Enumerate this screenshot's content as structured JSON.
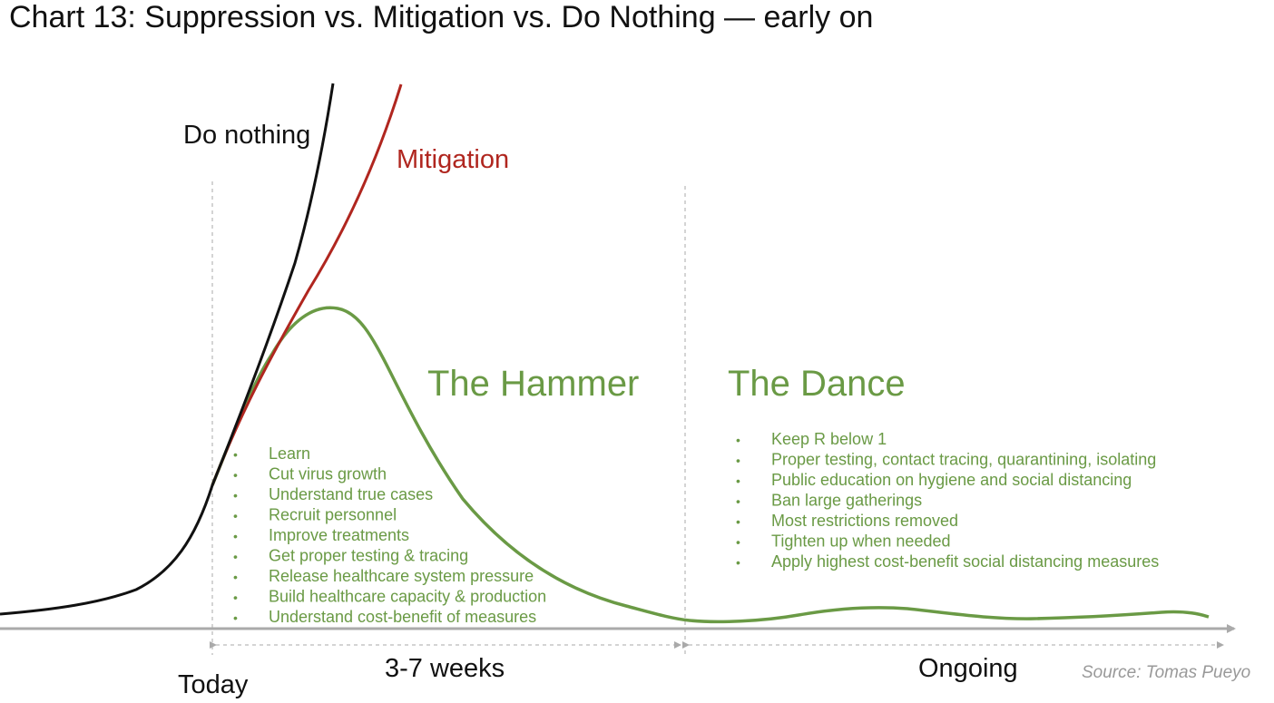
{
  "title": "Chart 13: Suppression vs. Mitigation vs. Do Nothing — early on",
  "curves": {
    "do_nothing": {
      "label": "Do nothing",
      "color": "#111111"
    },
    "mitigation": {
      "label": "Mitigation",
      "color": "#b0261f"
    },
    "suppression": {
      "color": "#6a9a45"
    }
  },
  "phases": {
    "hammer": {
      "title": "The Hammer",
      "bullets": [
        "Learn",
        "Cut virus growth",
        "Understand true cases",
        "Recruit personnel",
        "Improve treatments",
        "Get proper testing & tracing",
        "Release healthcare system pressure",
        "Build healthcare capacity & production",
        "Understand cost-benefit of measures"
      ]
    },
    "dance": {
      "title": "The Dance",
      "bullets": [
        "Keep R below 1",
        "Proper testing, contact tracing, quarantining, isolating",
        "Public education on hygiene and social distancing",
        "Ban large gatherings",
        "Most restrictions removed",
        "Tighten up when needed",
        "Apply highest cost-benefit social distancing measures"
      ]
    }
  },
  "axis": {
    "today_label": "Today",
    "hammer_duration_label": "3-7 weeks",
    "dance_duration_label": "Ongoing",
    "axis_color": "#aaaaaa",
    "divider_color": "#aaaaaa"
  },
  "source": "Source: Tomas Pueyo",
  "bullet_char": "•"
}
